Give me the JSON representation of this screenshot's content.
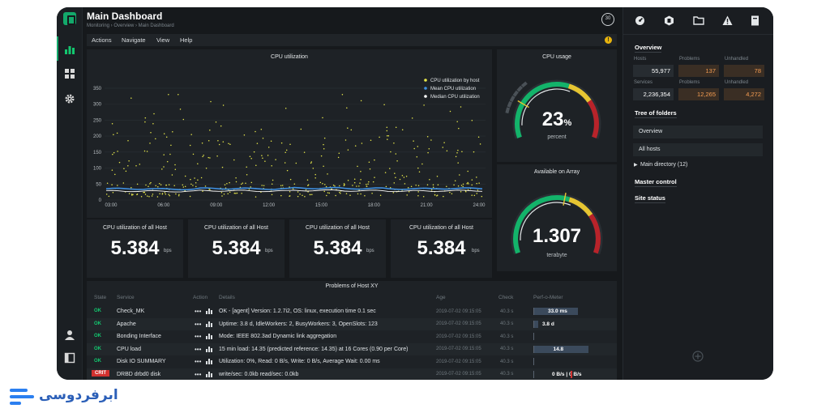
{
  "header": {
    "title": "Main Dashboard",
    "breadcrumbs": "Monitoring › Overview › Main Dashboard",
    "clock_badge": "30"
  },
  "menu": [
    "Actions",
    "Navigate",
    "View",
    "Help"
  ],
  "warn_icon_text": "!",
  "cpu_chart": {
    "title": "CPU utilization",
    "legend": [
      "CPU utilization by host",
      "Mean CPU utilization",
      "Median CPU utilization"
    ],
    "y_ticks": [
      "350",
      "300",
      "250",
      "200",
      "150",
      "100",
      "50",
      "0"
    ],
    "x_ticks": [
      "03:00",
      "06:00",
      "09:00",
      "12:00",
      "15:00",
      "18:00",
      "21:00",
      "24:00"
    ]
  },
  "chart_data": {
    "type": "scatter",
    "title": "CPU utilization",
    "x": [
      "03:00",
      "06:00",
      "09:00",
      "12:00",
      "15:00",
      "18:00",
      "21:00",
      "24:00"
    ],
    "ylim": [
      0,
      370
    ],
    "series": [
      {
        "name": "CPU utilization by host",
        "color": "#e8e84a",
        "values": [
          210,
          150,
          90,
          260,
          120,
          180,
          70,
          220
        ]
      },
      {
        "name": "Mean CPU utilization",
        "color": "#3f8fe0",
        "values": [
          35,
          34,
          36,
          35,
          37,
          36,
          35,
          36
        ]
      },
      {
        "name": "Median CPU utilization",
        "color": "#ffffff",
        "values": [
          28,
          27,
          29,
          28,
          30,
          29,
          28,
          29
        ]
      }
    ]
  },
  "gauges": [
    {
      "title": "CPU usage",
      "value": "23",
      "suffix": "%",
      "unit": "percent",
      "fraction": 0.23
    },
    {
      "title": "Available on Array",
      "value": "1.307",
      "suffix": "",
      "unit": "terabyte",
      "fraction": 0.55
    }
  ],
  "stats": [
    {
      "title": "CPU utilization of all Host",
      "value": "5.384",
      "unit": "bps"
    },
    {
      "title": "CPU utilization of all Host",
      "value": "5.384",
      "unit": "bps"
    },
    {
      "title": "CPU utilization of all Host",
      "value": "5.384",
      "unit": "bps"
    },
    {
      "title": "CPU utilization of all Host",
      "value": "5.384",
      "unit": "bps"
    }
  ],
  "problems": {
    "title": "Problems of Host XY",
    "columns": [
      "State",
      "Service",
      "Action",
      "Details",
      "Age",
      "Check",
      "Perf-o-Meter"
    ],
    "rows": [
      {
        "state": "OK",
        "service": "Check_MK",
        "details": "OK - [agent] Version: 1.2.7i2, OS: linux, execution time 0.1 sec",
        "age": "2019-07-02 09:15:05",
        "check": "40.3 s",
        "perf": "33.0 ms",
        "perf_fraction": 0.56
      },
      {
        "state": "OK",
        "service": "Apache",
        "details": "Uptime: 3.8 d, IdleWorkers: 2, BusyWorkers: 3, OpenSlots: 123",
        "age": "2019-07-02 09:15:05",
        "check": "40.3 s",
        "perf": "3.8 d",
        "perf_fraction": 0.05
      },
      {
        "state": "OK",
        "service": "Bonding Interface",
        "details": "Mode: IEEE 802.3ad Dynamic link aggregation",
        "age": "2019-07-02 09:15:05",
        "check": "40.3 s",
        "perf": "",
        "perf_fraction": 0
      },
      {
        "state": "OK",
        "service": "CPU load",
        "details": "15 min load: 14.35 (predicted reference: 14.35) at 16 Cores (0.90 per Core)",
        "age": "2019-07-02 09:15:05",
        "check": "40.3 s",
        "perf": "14.8",
        "perf_fraction": 0.7
      },
      {
        "state": "OK",
        "service": "Disk IO SUMMARY",
        "details": "Utilization: 0%, Read: 0 B/s, Write: 0 B/s, Average Wait: 0.00 ms",
        "age": "2019-07-02 09:15:05",
        "check": "40.3 s",
        "perf": "",
        "perf_fraction": 0
      },
      {
        "state": "CRIT",
        "service": "DRBD drbd0 disk",
        "details": "write/sec: 0.0kb read/sec: 0.0kb",
        "age": "2019-07-02 09:15:05",
        "check": "40.3 s",
        "perf": "0 B/s | 0 B/s",
        "perf_fraction": 0
      }
    ]
  },
  "sidebar": {
    "overview_title": "Overview",
    "labels": [
      "Hosts",
      "Problems",
      "Unhandled",
      "Services",
      "Problems",
      "Unhandled"
    ],
    "values": [
      "55,977",
      "137",
      "78",
      "2,236,354",
      "12,265",
      "4,272"
    ],
    "tree_title": "Tree of folders",
    "tree_items": [
      "Overview",
      "All hosts"
    ],
    "main_directory": "Main directory (12)",
    "master_control": "Master control",
    "site_status": "Site status"
  },
  "brand": {
    "text": "ابرفردوسی",
    "color": "#2b7ff0"
  }
}
